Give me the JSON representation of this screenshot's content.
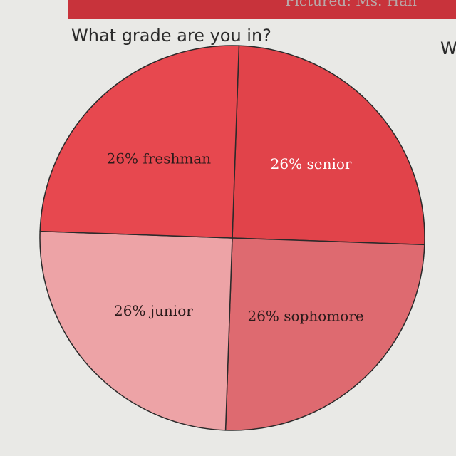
{
  "header": {
    "caption": "Pictured: Ms. Han",
    "next_title": "W"
  },
  "chart_data": {
    "type": "pie",
    "title": "What grade are you in?",
    "categories": [
      "senior",
      "sophomore",
      "junior",
      "freshman"
    ],
    "values": [
      26,
      26,
      26,
      26
    ],
    "value_labels": [
      "26%",
      "26%",
      "26%",
      "26%"
    ],
    "colors": [
      "#e1434a",
      "#de6a70",
      "#eda3a6",
      "#e7484f"
    ]
  }
}
